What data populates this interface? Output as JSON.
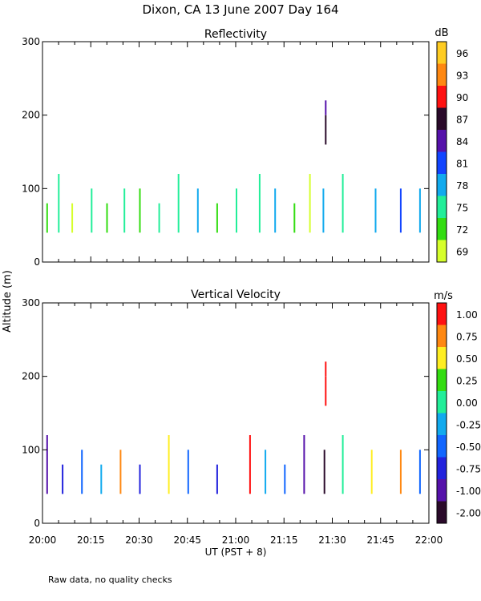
{
  "title": "Dixon, CA 13 June 2007  Day 164",
  "footnote": "Raw data, no quality checks",
  "shared_ylabel": "Altitude (m)",
  "shared_xlabel": "UT  (PST + 8)",
  "chart_data": [
    {
      "type": "heatmap",
      "title": "Reflectivity",
      "ylabel": "Altitude (m)",
      "ylim": [
        0,
        300
      ],
      "yticks": [
        "0",
        "100",
        "200",
        "300"
      ],
      "xlabel": "UT  (PST + 8)",
      "xlim_hours": [
        20.0,
        22.0
      ],
      "xticks": [
        "20:00",
        "20:15",
        "20:30",
        "20:45",
        "21:00",
        "21:15",
        "21:30",
        "21:45",
        "22:00"
      ],
      "colorbar": {
        "unit": "dB",
        "labels": [
          "69",
          "72",
          "75",
          "78",
          "81",
          "84",
          "87",
          "90",
          "93",
          "96"
        ],
        "colors": [
          "#d6ff2b",
          "#33dd11",
          "#22ee99",
          "#11aaee",
          "#1144ff",
          "#5511aa",
          "#2a0a2a",
          "#ff1111",
          "#ff8811",
          "#ffcc22"
        ]
      },
      "gate_step_m": 20,
      "columns": [
        {
          "time": 20.02,
          "bottom": 40,
          "top": 80,
          "color_index": 1
        },
        {
          "time": 20.08,
          "bottom": 40,
          "top": 120,
          "color_index": 2
        },
        {
          "time": 20.15,
          "bottom": 40,
          "top": 80,
          "color_index": 0
        },
        {
          "time": 20.25,
          "bottom": 40,
          "top": 100,
          "color_index": 2
        },
        {
          "time": 20.33,
          "bottom": 40,
          "top": 80,
          "color_index": 1
        },
        {
          "time": 20.42,
          "bottom": 40,
          "top": 100,
          "color_index": 2
        },
        {
          "time": 20.5,
          "bottom": 40,
          "top": 100,
          "color_index": 1
        },
        {
          "time": 20.6,
          "bottom": 40,
          "top": 80,
          "color_index": 2
        },
        {
          "time": 20.7,
          "bottom": 40,
          "top": 120,
          "color_index": 2
        },
        {
          "time": 20.8,
          "bottom": 40,
          "top": 100,
          "color_index": 3
        },
        {
          "time": 20.9,
          "bottom": 40,
          "top": 80,
          "color_index": 1
        },
        {
          "time": 21.0,
          "bottom": 40,
          "top": 100,
          "color_index": 2
        },
        {
          "time": 21.12,
          "bottom": 40,
          "top": 120,
          "color_index": 2
        },
        {
          "time": 21.2,
          "bottom": 40,
          "top": 100,
          "color_index": 3
        },
        {
          "time": 21.3,
          "bottom": 40,
          "top": 80,
          "color_index": 1
        },
        {
          "time": 21.38,
          "bottom": 40,
          "top": 120,
          "color_index": 0
        },
        {
          "time": 21.45,
          "bottom": 40,
          "top": 100,
          "color_index": 3
        },
        {
          "time": 21.462,
          "bottom": 160,
          "top": 200,
          "color_index": 6
        },
        {
          "time": 21.462,
          "bottom": 200,
          "top": 220,
          "color_index": 5
        },
        {
          "time": 21.55,
          "bottom": 40,
          "top": 120,
          "color_index": 2
        },
        {
          "time": 21.72,
          "bottom": 40,
          "top": 100,
          "color_index": 3
        },
        {
          "time": 21.85,
          "bottom": 40,
          "top": 100,
          "color_index": 4
        },
        {
          "time": 21.95,
          "bottom": 40,
          "top": 100,
          "color_index": 3
        }
      ]
    },
    {
      "type": "heatmap",
      "title": "Vertical Velocity",
      "ylabel": "Altitude (m)",
      "ylim": [
        0,
        300
      ],
      "yticks": [
        "0",
        "100",
        "200",
        "300"
      ],
      "xlabel": "UT  (PST + 8)",
      "xlim_hours": [
        20.0,
        22.0
      ],
      "xticks": [
        "20:00",
        "20:15",
        "20:30",
        "20:45",
        "21:00",
        "21:15",
        "21:30",
        "21:45",
        "22:00"
      ],
      "colorbar": {
        "unit": "m/s",
        "labels": [
          "-2.00",
          "-1.00",
          "-0.75",
          "-0.50",
          "-0.25",
          "0.00",
          "0.25",
          "0.50",
          "0.75",
          "1.00"
        ],
        "colors": [
          "#2a0a2a",
          "#5511aa",
          "#2222dd",
          "#1166ff",
          "#11aaee",
          "#22ee99",
          "#33dd11",
          "#ffee22",
          "#ff8811",
          "#ff1111"
        ]
      },
      "gate_step_m": 20,
      "columns": [
        {
          "time": 20.02,
          "bottom": 40,
          "top": 120,
          "color_index": 1
        },
        {
          "time": 20.1,
          "bottom": 40,
          "top": 80,
          "color_index": 2
        },
        {
          "time": 20.2,
          "bottom": 40,
          "top": 100,
          "color_index": 3
        },
        {
          "time": 20.3,
          "bottom": 40,
          "top": 80,
          "color_index": 4
        },
        {
          "time": 20.4,
          "bottom": 40,
          "top": 100,
          "color_index": 8
        },
        {
          "time": 20.5,
          "bottom": 40,
          "top": 80,
          "color_index": 2
        },
        {
          "time": 20.65,
          "bottom": 40,
          "top": 120,
          "color_index": 7
        },
        {
          "time": 20.75,
          "bottom": 40,
          "top": 100,
          "color_index": 3
        },
        {
          "time": 20.9,
          "bottom": 40,
          "top": 80,
          "color_index": 2
        },
        {
          "time": 21.07,
          "bottom": 40,
          "top": 120,
          "color_index": 9
        },
        {
          "time": 21.15,
          "bottom": 40,
          "top": 100,
          "color_index": 4
        },
        {
          "time": 21.25,
          "bottom": 40,
          "top": 80,
          "color_index": 3
        },
        {
          "time": 21.35,
          "bottom": 40,
          "top": 120,
          "color_index": 1
        },
        {
          "time": 21.455,
          "bottom": 40,
          "top": 100,
          "color_index": 0
        },
        {
          "time": 21.462,
          "bottom": 160,
          "top": 200,
          "color_index": 9
        },
        {
          "time": 21.462,
          "bottom": 200,
          "top": 220,
          "color_index": 9
        },
        {
          "time": 21.55,
          "bottom": 40,
          "top": 120,
          "color_index": 5
        },
        {
          "time": 21.7,
          "bottom": 40,
          "top": 100,
          "color_index": 7
        },
        {
          "time": 21.85,
          "bottom": 40,
          "top": 100,
          "color_index": 8
        },
        {
          "time": 21.95,
          "bottom": 40,
          "top": 100,
          "color_index": 3
        }
      ]
    }
  ]
}
